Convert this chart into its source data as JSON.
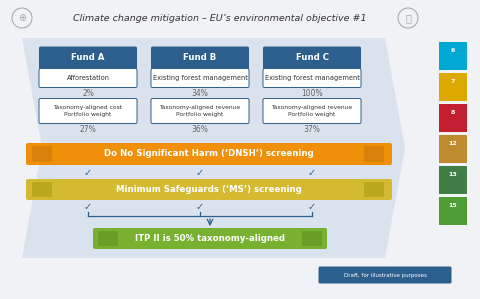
{
  "title": "Climate change mitigation – EU’s environmental objective #1",
  "bg_color": "#f0f2f5",
  "funds": [
    {
      "name": "Fund A",
      "subtitle": "Afforestation",
      "pct1": "2%",
      "label1": "Taxonomy-aligned cost\nPortfolio weight",
      "pct2": "27%"
    },
    {
      "name": "Fund B",
      "subtitle": "Existing forest management",
      "pct1": "34%",
      "label1": "Taxonomy-aligned revenue\nPortfolio weight",
      "pct2": "36%"
    },
    {
      "name": "Fund C",
      "subtitle": "Existing forest management",
      "pct1": "100%",
      "label1": "Taxonomy-aligned revenue\nPortfolio weight",
      "pct2": "37%"
    }
  ],
  "fund_header_color": "#2d5f8e",
  "arrow_bg_color": "#c8d8e8",
  "arrow_side_color": "#2d5f8e",
  "dnsh_color": "#f0900a",
  "ms_color": "#d4ba30",
  "itp_color": "#78b030",
  "dnsh_text": "Do No Significant Harm (‘DNSH’) screening",
  "ms_text": "Minimum Safeguards (‘MS’) screening",
  "itp_text": "ITP II is 50% taxonomy-aligned",
  "draft_text": "Draft, for illustrative purposes",
  "draft_bg": "#2d5f8e",
  "sdg_colors": [
    "#00a9d4",
    "#dda800",
    "#c31f33",
    "#be8b2e",
    "#3f7e44",
    "#4c9e35"
  ],
  "sdg_numbers": [
    "6",
    "7",
    "8",
    "12",
    "13",
    "15"
  ],
  "check_color": "#2d5f8e",
  "line_color": "#2d5f8e",
  "pct_color": "#666666",
  "text_color": "#333333"
}
